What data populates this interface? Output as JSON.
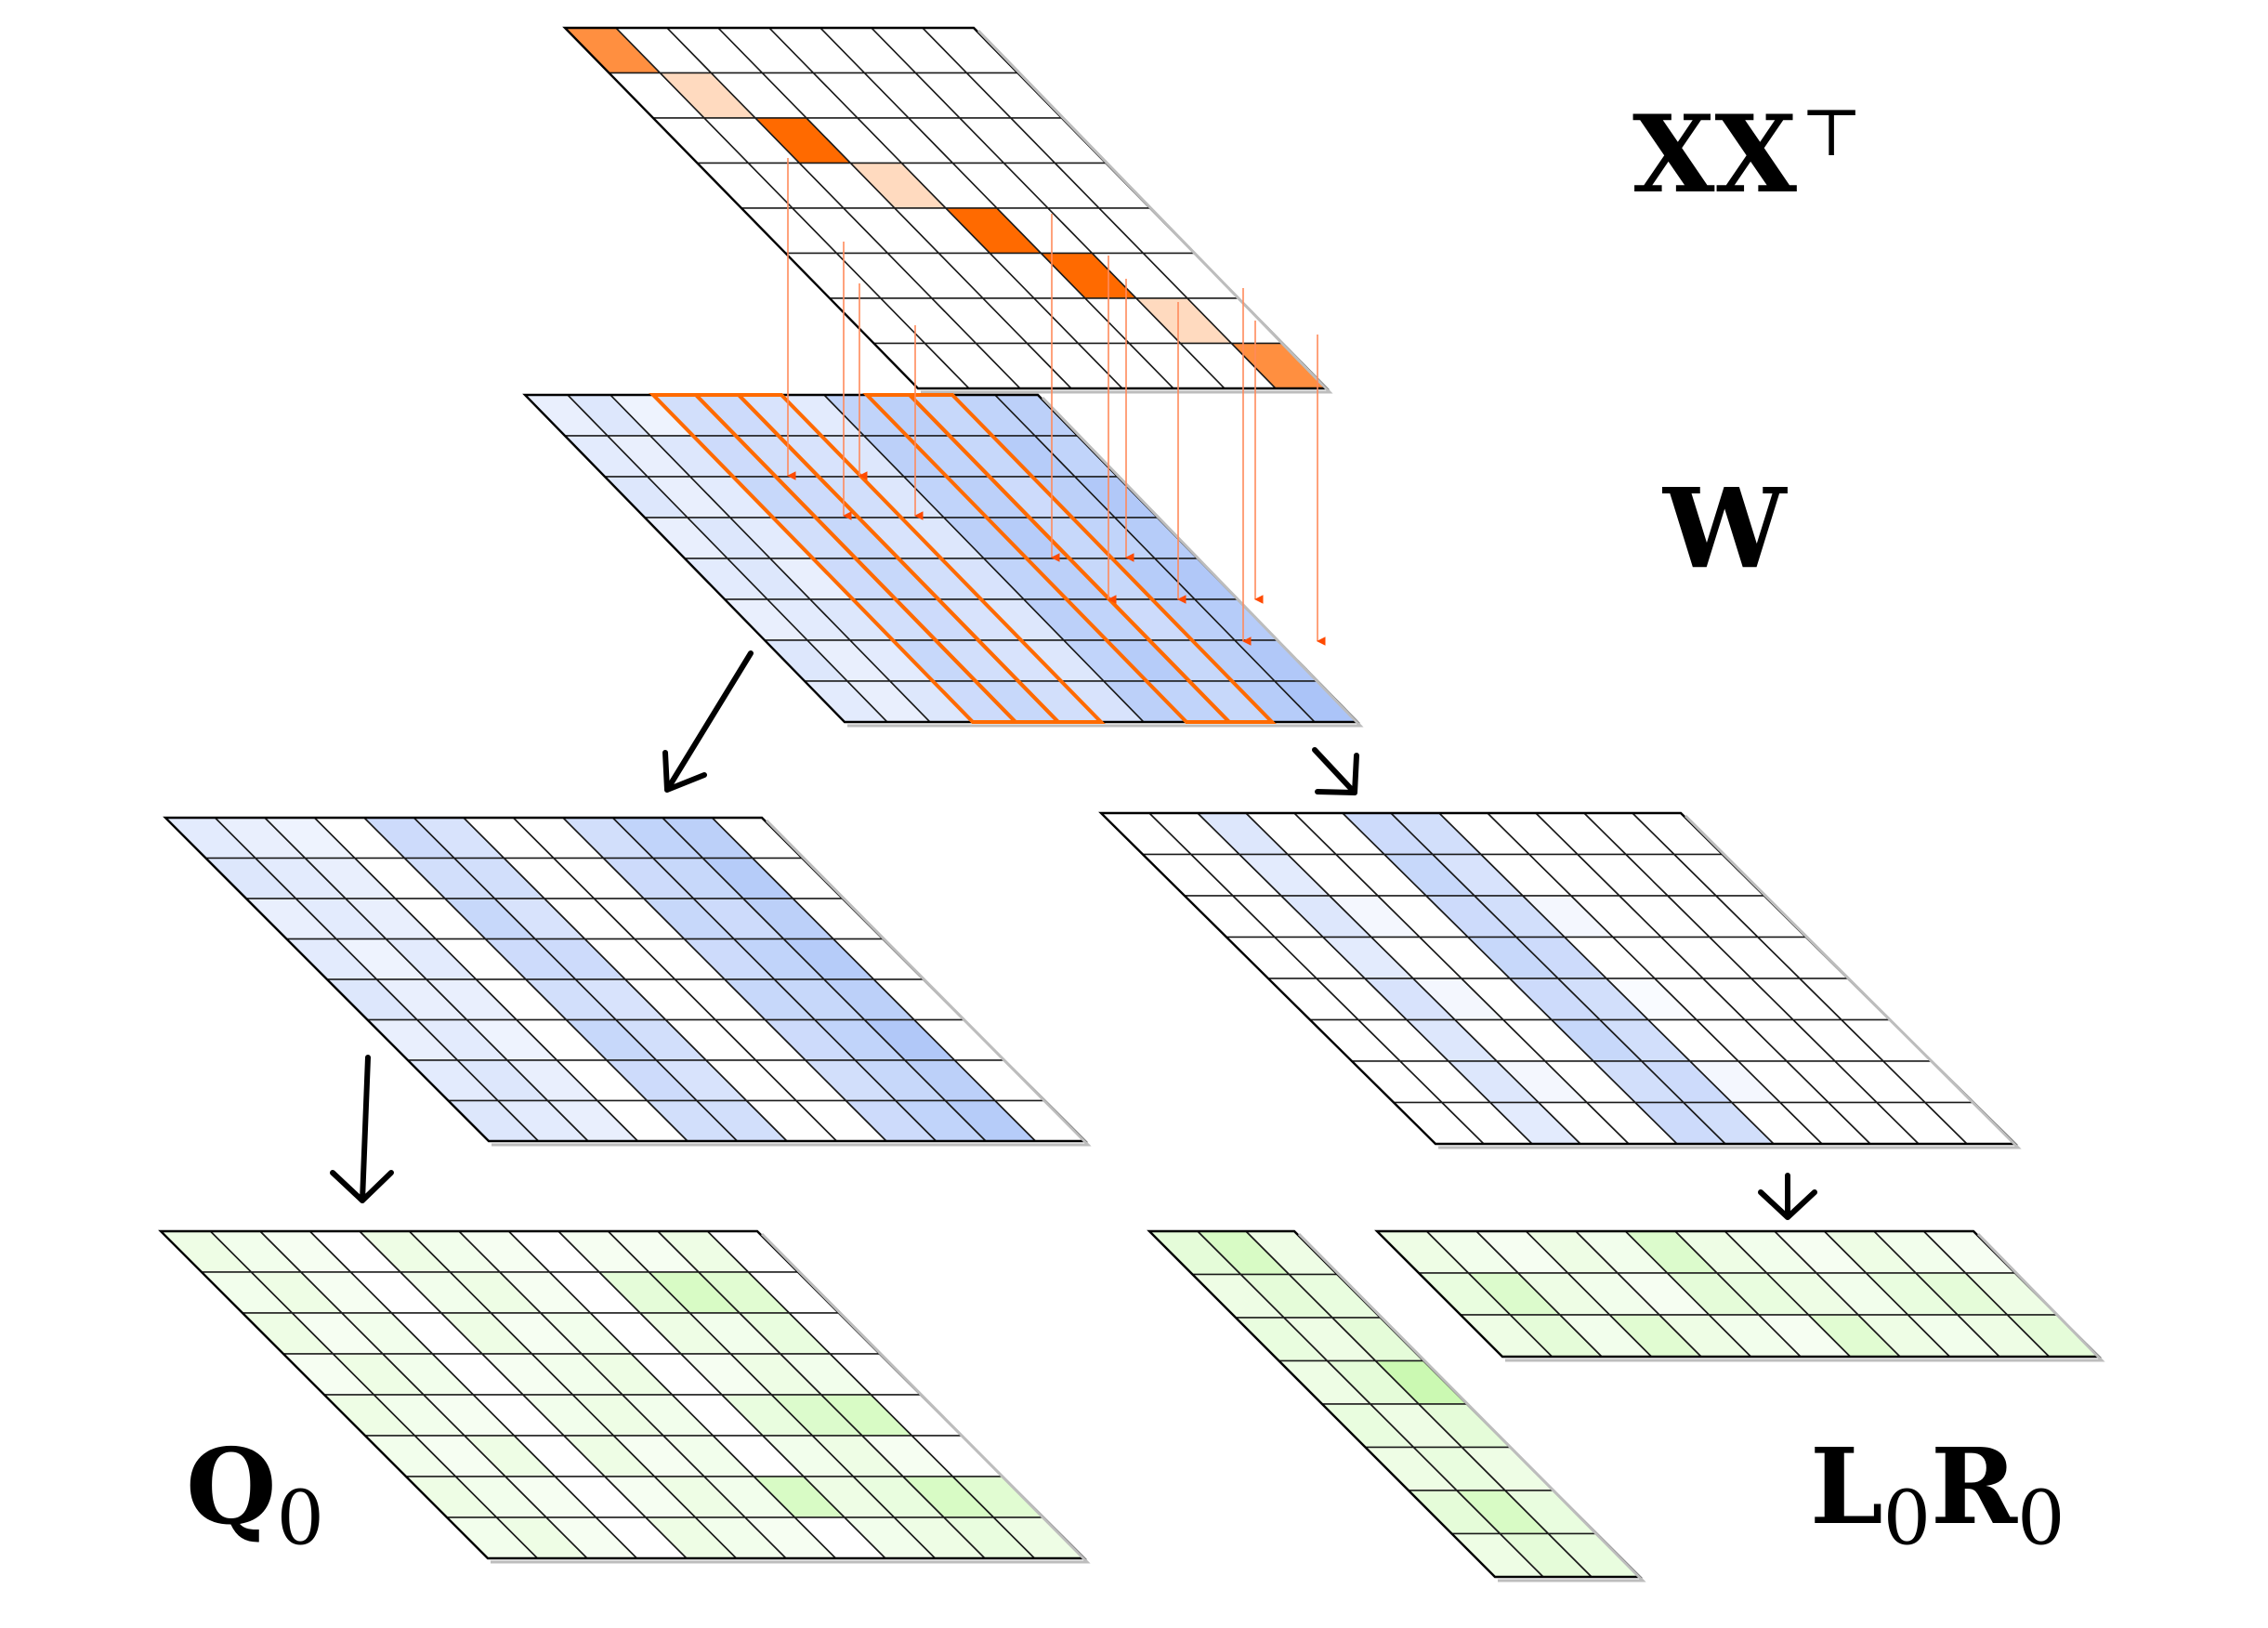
{
  "labels": {
    "xx_main": "XX",
    "xx_sup": "⊤",
    "w": "W",
    "q_main": "Q",
    "q_sub": "0",
    "l_main": "L",
    "l_sub": "0",
    "r_main": "R",
    "r_sub": "0"
  },
  "colors": {
    "orange": "#ff6a00",
    "blue": "#8fb0f5",
    "green": "#a8f57f",
    "grid_line": "#000000",
    "arrow": "#000000"
  },
  "matrices": {
    "xx": {
      "rows": 8,
      "cols": 8,
      "color": "orange",
      "shade": [
        [
          0.75,
          0,
          0,
          0,
          0,
          0,
          0,
          0
        ],
        [
          0,
          0.25,
          0,
          0,
          0,
          0,
          0,
          0
        ],
        [
          0,
          0,
          1,
          0,
          0,
          0,
          0,
          0
        ],
        [
          0,
          0,
          0,
          0.25,
          0,
          0,
          0,
          0
        ],
        [
          0,
          0,
          0,
          0,
          1,
          0,
          0,
          0
        ],
        [
          0,
          0,
          0,
          0,
          0,
          1,
          0,
          0
        ],
        [
          0,
          0,
          0,
          0,
          0,
          0,
          0.25,
          0
        ],
        [
          0,
          0,
          0,
          0,
          0,
          0,
          0,
          0.75
        ]
      ]
    },
    "w": {
      "rows": 8,
      "cols": 12,
      "color": "blue",
      "shade": [
        [
          0.2,
          0.3,
          0.15,
          0.4,
          0.45,
          0.35,
          0.25,
          0.55,
          0.6,
          0.5,
          0.55,
          0.6
        ],
        [
          0.25,
          0.2,
          0.3,
          0.45,
          0.4,
          0.35,
          0.3,
          0.6,
          0.55,
          0.5,
          0.65,
          0.55
        ],
        [
          0.3,
          0.2,
          0.25,
          0.5,
          0.45,
          0.4,
          0.3,
          0.55,
          0.6,
          0.45,
          0.6,
          0.7
        ],
        [
          0.2,
          0.3,
          0.25,
          0.4,
          0.5,
          0.35,
          0.3,
          0.6,
          0.65,
          0.5,
          0.55,
          0.65
        ],
        [
          0.25,
          0.3,
          0.2,
          0.45,
          0.5,
          0.4,
          0.35,
          0.55,
          0.6,
          0.5,
          0.65,
          0.7
        ],
        [
          0.2,
          0.25,
          0.3,
          0.4,
          0.45,
          0.35,
          0.3,
          0.6,
          0.55,
          0.45,
          0.6,
          0.65
        ],
        [
          0.3,
          0.2,
          0.25,
          0.5,
          0.4,
          0.35,
          0.3,
          0.55,
          0.65,
          0.5,
          0.6,
          0.7
        ],
        [
          0.25,
          0.2,
          0.3,
          0.45,
          0.5,
          0.4,
          0.35,
          0.6,
          0.55,
          0.5,
          0.65,
          0.75
        ]
      ],
      "highlight_cols": [
        3,
        4,
        5,
        8,
        9
      ]
    },
    "w_left": {
      "rows": 8,
      "cols": 12,
      "color": "blue",
      "shade": [
        [
          0.25,
          0.2,
          0.15,
          0,
          0.45,
          0.35,
          0,
          0,
          0.4,
          0.55,
          0.6,
          0
        ],
        [
          0.3,
          0.25,
          0.2,
          0,
          0.4,
          0.4,
          0,
          0,
          0.45,
          0.5,
          0.65,
          0
        ],
        [
          0.2,
          0.25,
          0.2,
          0,
          0.5,
          0.35,
          0,
          0,
          0.5,
          0.45,
          0.6,
          0
        ],
        [
          0.25,
          0.15,
          0.25,
          0,
          0.45,
          0.45,
          0,
          0,
          0.45,
          0.55,
          0.65,
          0
        ],
        [
          0.3,
          0.2,
          0.2,
          0,
          0.4,
          0.35,
          0,
          0,
          0.5,
          0.5,
          0.6,
          0
        ],
        [
          0.2,
          0.25,
          0.15,
          0,
          0.5,
          0.4,
          0,
          0,
          0.45,
          0.55,
          0.7,
          0
        ],
        [
          0.25,
          0.3,
          0.2,
          0,
          0.45,
          0.35,
          0,
          0,
          0.4,
          0.5,
          0.6,
          0
        ],
        [
          0.3,
          0.25,
          0.2,
          0,
          0.4,
          0.4,
          0,
          0,
          0.45,
          0.55,
          0.65,
          0
        ]
      ]
    },
    "w_right": {
      "rows": 8,
      "cols": 12,
      "color": "blue",
      "shade": [
        [
          0,
          0,
          0.3,
          0,
          0,
          0.45,
          0.4,
          0,
          0,
          0,
          0,
          0
        ],
        [
          0,
          0,
          0.25,
          0,
          0,
          0.5,
          0.35,
          0,
          0,
          0,
          0,
          0
        ],
        [
          0,
          0,
          0.3,
          0.1,
          0,
          0.45,
          0.4,
          0.1,
          0,
          0,
          0,
          0
        ],
        [
          0,
          0,
          0.25,
          0,
          0,
          0.5,
          0.45,
          0,
          0,
          0,
          0,
          0
        ],
        [
          0,
          0,
          0.35,
          0.1,
          0,
          0.45,
          0.4,
          0.05,
          0,
          0,
          0,
          0
        ],
        [
          0,
          0,
          0.3,
          0,
          0,
          0.5,
          0.4,
          0,
          0,
          0,
          0,
          0
        ],
        [
          0,
          0,
          0.3,
          0.1,
          0,
          0.4,
          0.45,
          0.1,
          0,
          0,
          0,
          0
        ],
        [
          0,
          0,
          0.25,
          0,
          0,
          0.45,
          0.4,
          0,
          0,
          0,
          0,
          0
        ]
      ]
    },
    "q": {
      "rows": 8,
      "cols": 12,
      "color": "green",
      "shade": [
        [
          0.2,
          0.15,
          0.1,
          0,
          0.2,
          0.15,
          0.1,
          0,
          0.1,
          0.1,
          0.2,
          0
        ],
        [
          0.15,
          0.2,
          0.1,
          0,
          0.15,
          0.2,
          0.1,
          0,
          0.3,
          0.45,
          0.35,
          0
        ],
        [
          0.2,
          0.1,
          0.15,
          0,
          0.2,
          0.1,
          0.15,
          0,
          0.2,
          0.15,
          0.25,
          0
        ],
        [
          0.1,
          0.2,
          0.15,
          0,
          0.1,
          0.15,
          0.2,
          0,
          0.1,
          0.2,
          0.15,
          0
        ],
        [
          0.2,
          0.15,
          0.1,
          0,
          0.15,
          0.2,
          0.15,
          0,
          0.25,
          0.4,
          0.45,
          0
        ],
        [
          0.15,
          0.1,
          0.2,
          0,
          0.2,
          0.1,
          0.15,
          0,
          0.15,
          0.2,
          0.1,
          0
        ],
        [
          0.2,
          0.15,
          0.1,
          0,
          0.1,
          0.2,
          0.15,
          0.45,
          0.2,
          0.25,
          0.45,
          0.35
        ],
        [
          0.15,
          0.2,
          0.1,
          0,
          0.2,
          0.15,
          0.1,
          0,
          0.15,
          0.2,
          0.25,
          0.2
        ]
      ]
    },
    "l": {
      "rows": 8,
      "cols": 3,
      "color": "green",
      "shade": [
        [
          0.3,
          0.45,
          0.2
        ],
        [
          0.2,
          0.3,
          0.25
        ],
        [
          0.25,
          0.2,
          0.3
        ],
        [
          0.2,
          0.3,
          0.6
        ],
        [
          0.25,
          0.2,
          0.3
        ],
        [
          0.2,
          0.25,
          0.2
        ],
        [
          0.3,
          0.45,
          0.25
        ],
        [
          0.2,
          0.3,
          0.25
        ]
      ]
    },
    "r": {
      "rows": 3,
      "cols": 12,
      "color": "green",
      "shade": [
        [
          0.2,
          0.15,
          0.1,
          0.2,
          0.15,
          0.4,
          0.2,
          0.15,
          0.1,
          0.2,
          0.15,
          0.1
        ],
        [
          0.25,
          0.4,
          0.2,
          0.15,
          0.1,
          0.3,
          0.25,
          0.2,
          0.15,
          0.25,
          0.3,
          0.2
        ],
        [
          0.2,
          0.3,
          0.15,
          0.35,
          0.2,
          0.15,
          0.1,
          0.35,
          0.2,
          0.15,
          0.2,
          0.3
        ]
      ]
    }
  }
}
